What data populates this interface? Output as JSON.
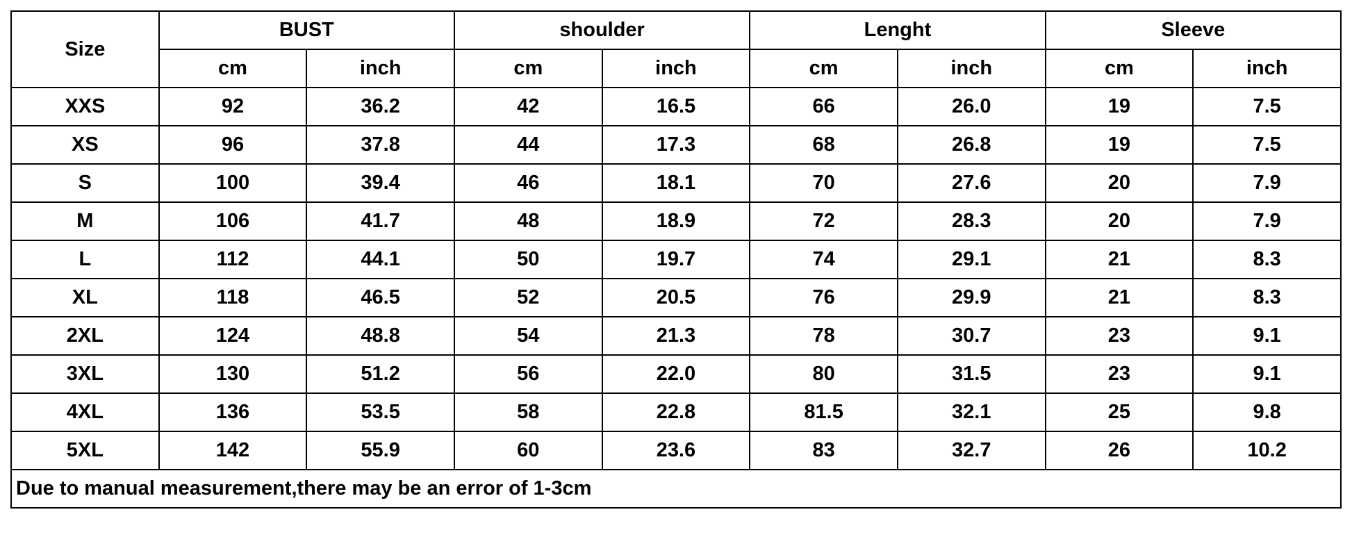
{
  "table": {
    "size_header": "Size",
    "groups": [
      "BUST",
      "shoulder",
      "Lenght",
      "Sleeve"
    ],
    "units": [
      "cm",
      "inch",
      "cm",
      "inch",
      "cm",
      "inch",
      "cm",
      "inch"
    ],
    "rows": [
      [
        "XXS",
        "92",
        "36.2",
        "42",
        "16.5",
        "66",
        "26.0",
        "19",
        "7.5"
      ],
      [
        "XS",
        "96",
        "37.8",
        "44",
        "17.3",
        "68",
        "26.8",
        "19",
        "7.5"
      ],
      [
        "S",
        "100",
        "39.4",
        "46",
        "18.1",
        "70",
        "27.6",
        "20",
        "7.9"
      ],
      [
        "M",
        "106",
        "41.7",
        "48",
        "18.9",
        "72",
        "28.3",
        "20",
        "7.9"
      ],
      [
        "L",
        "112",
        "44.1",
        "50",
        "19.7",
        "74",
        "29.1",
        "21",
        "8.3"
      ],
      [
        "XL",
        "118",
        "46.5",
        "52",
        "20.5",
        "76",
        "29.9",
        "21",
        "8.3"
      ],
      [
        "2XL",
        "124",
        "48.8",
        "54",
        "21.3",
        "78",
        "30.7",
        "23",
        "9.1"
      ],
      [
        "3XL",
        "130",
        "51.2",
        "56",
        "22.0",
        "80",
        "31.5",
        "23",
        "9.1"
      ],
      [
        "4XL",
        "136",
        "53.5",
        "58",
        "22.8",
        "81.5",
        "32.1",
        "25",
        "9.8"
      ],
      [
        "5XL",
        "142",
        "55.9",
        "60",
        "23.6",
        "83",
        "32.7",
        "26",
        "10.2"
      ]
    ],
    "note": "Due to manual measurement,there may be an error of 1-3cm"
  }
}
